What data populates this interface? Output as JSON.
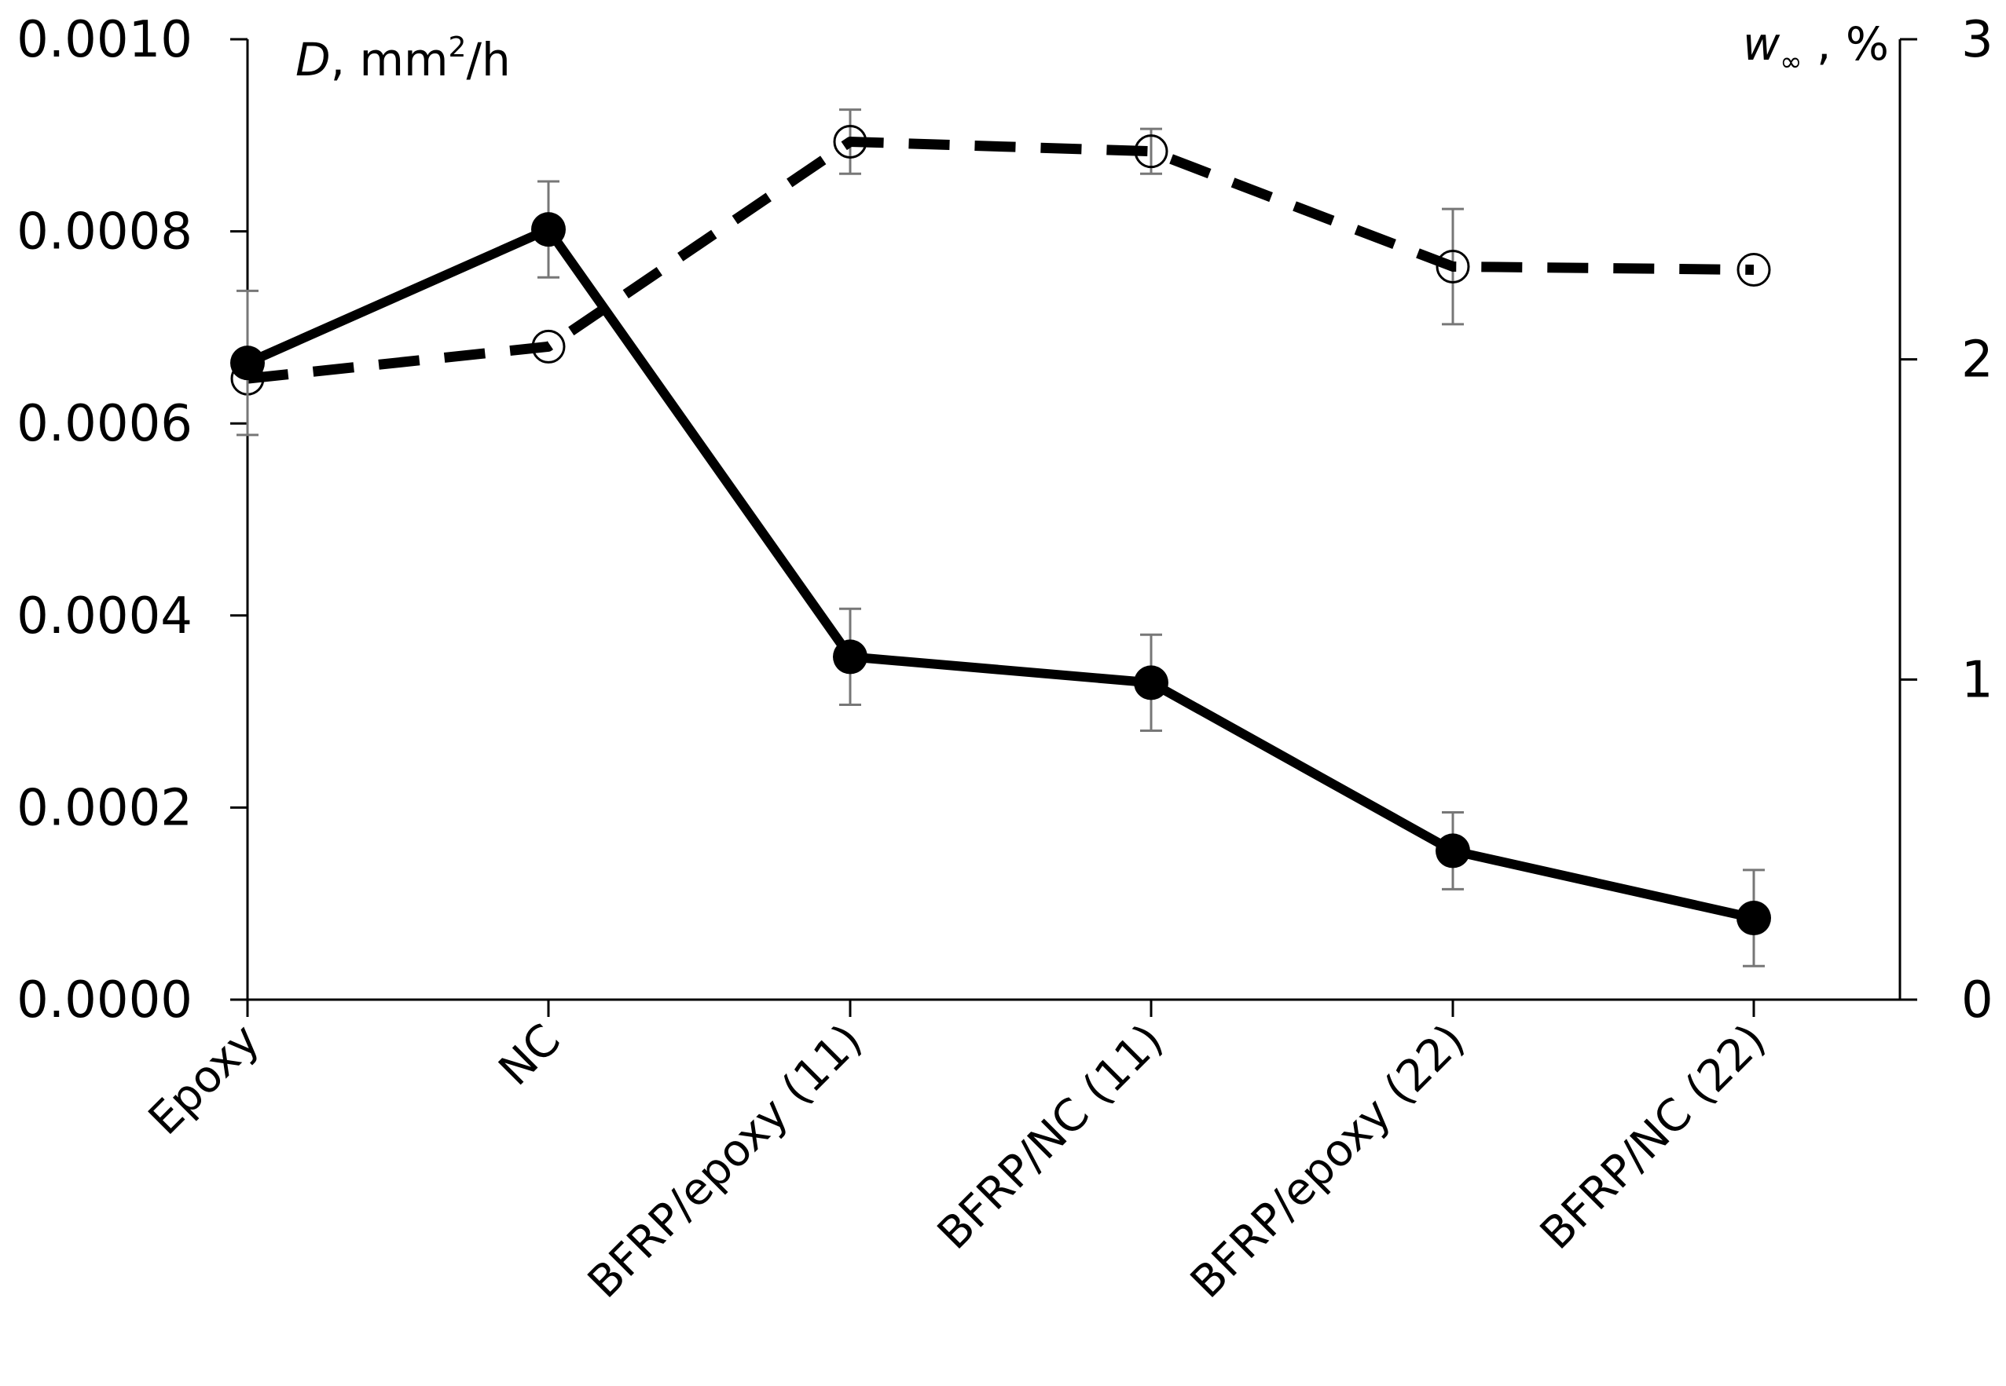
{
  "chart_data": {
    "type": "line",
    "categories": [
      "Epoxy",
      "NC",
      "BFRP/epoxy (11)",
      "BFRP/NC (11)",
      "BFRP/epoxy (22)",
      "BFRP/NC (22)"
    ],
    "left_axis": {
      "title_var": "D",
      "title_unit": ", mm",
      "title_sup": "2",
      "title_tail": "/h",
      "ylim": [
        0,
        0.001
      ],
      "ticks": [
        "0.0000",
        "0.0002",
        "0.0004",
        "0.0006",
        "0.0008",
        "0.0010"
      ]
    },
    "right_axis": {
      "title_var": "w",
      "title_sub": "∞",
      "title_tail": " , %",
      "ylim": [
        0,
        3
      ],
      "ticks": [
        "0",
        "1",
        "2",
        "3"
      ]
    },
    "series": [
      {
        "name": "D",
        "axis": "left",
        "style": "solid",
        "marker": "filled-circle",
        "values": [
          0.000663,
          0.000802,
          0.000357,
          0.00033,
          0.000155,
          8.5e-05
        ],
        "errors": [
          7.5e-05,
          5e-05,
          5e-05,
          5e-05,
          4e-05,
          5e-05
        ]
      },
      {
        "name": "w∞",
        "axis": "right",
        "style": "dashed",
        "marker": "open-circle",
        "values": [
          1.94,
          2.04,
          2.68,
          2.65,
          2.29,
          2.28
        ],
        "errors": [
          0.0,
          0.0,
          0.1,
          0.07,
          0.18,
          0.0
        ]
      }
    ],
    "grid": false,
    "legend": "none"
  }
}
